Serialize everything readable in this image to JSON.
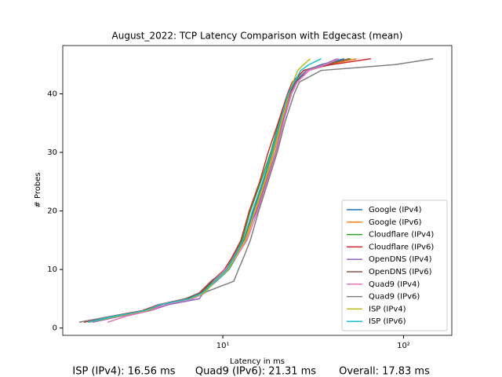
{
  "chart_data": {
    "type": "line",
    "title": "August_2022: TCP Latency Comparison with Edgecast (mean)",
    "xlabel": "Latency in ms",
    "ylabel": "# Probes",
    "xscale": "log",
    "xlim": [
      1.3,
      185
    ],
    "ylim": [
      -1.25,
      48.25
    ],
    "xticks": [
      {
        "value": 10,
        "label": "10¹"
      },
      {
        "value": 100,
        "label": "10²"
      }
    ],
    "yticks": [
      0,
      10,
      20,
      30,
      40
    ],
    "legend": "lower right",
    "annotations": [
      "ISP (IPv4): 16.56 ms",
      "Quad9 (IPv6): 21.31 ms",
      "Overall: 17.83 ms"
    ],
    "series": [
      {
        "name": "Google (IPv4)",
        "color": "#1f77b4",
        "x": [
          1.7,
          2.5,
          3.7,
          4.5,
          6.5,
          7.8,
          9.2,
          10.8,
          11.8,
          13.2,
          14.8,
          16.8,
          18.8,
          20.8,
          23.5,
          25,
          29,
          35,
          47
        ],
        "values": [
          1,
          2,
          3,
          4,
          5,
          6,
          8,
          10,
          12,
          15,
          20,
          25,
          30,
          35,
          40,
          42,
          44,
          45,
          46
        ]
      },
      {
        "name": "Google (IPv6)",
        "color": "#ff7f0e",
        "x": [
          1.8,
          2.6,
          3.9,
          4.6,
          6.6,
          7.9,
          9.0,
          10.6,
          11.6,
          13.4,
          15.2,
          17.2,
          19.2,
          21.2,
          23.6,
          25.5,
          30,
          38,
          55
        ],
        "values": [
          1,
          2,
          3,
          4,
          5,
          6,
          8,
          10,
          12,
          15,
          20,
          25,
          30,
          35,
          40,
          42,
          44,
          45,
          46
        ]
      },
      {
        "name": "Cloudflare (IPv4)",
        "color": "#2ca02c",
        "x": [
          1.8,
          2.5,
          3.8,
          4.5,
          6.4,
          7.6,
          8.8,
          10.4,
          11.4,
          12.8,
          14.2,
          16.2,
          18.4,
          20.4,
          23.2,
          24.6,
          28,
          36,
          51
        ],
        "values": [
          1,
          2,
          3,
          4,
          5,
          6,
          8,
          10,
          12,
          15,
          20,
          25,
          30,
          35,
          40,
          42,
          44,
          45,
          46
        ]
      },
      {
        "name": "Cloudflare (IPv6)",
        "color": "#d62728",
        "x": [
          1.7,
          2.4,
          3.6,
          4.4,
          6.2,
          7.5,
          8.7,
          10.2,
          11.2,
          12.6,
          14.0,
          16.0,
          17.8,
          20.2,
          22.8,
          24.2,
          28,
          40,
          66
        ],
        "values": [
          1,
          2,
          3,
          4,
          5,
          6,
          8,
          10,
          12,
          15,
          20,
          25,
          30,
          35,
          40,
          42,
          44,
          45,
          46
        ]
      },
      {
        "name": "OpenDNS (IPv4)",
        "color": "#9467bd",
        "x": [
          1.9,
          2.7,
          4.0,
          5.0,
          7.4,
          7.8,
          9.1,
          10.6,
          11.4,
          13.0,
          15.4,
          17.4,
          19.6,
          21.4,
          23.8,
          25.6,
          29,
          36,
          43
        ],
        "values": [
          1,
          2,
          3,
          4,
          5,
          6,
          8,
          10,
          12,
          15,
          20,
          25,
          30,
          35,
          40,
          42,
          44,
          45,
          46
        ]
      },
      {
        "name": "OpenDNS (IPv6)",
        "color": "#8c564b",
        "x": [
          1.8,
          2.6,
          3.8,
          4.6,
          6.2,
          7.4,
          8.6,
          10.4,
          11.6,
          13.2,
          14.6,
          16.6,
          18.6,
          20.6,
          23.4,
          25.2,
          30,
          38,
          50
        ],
        "values": [
          1,
          2,
          3,
          4,
          5,
          6,
          8,
          10,
          12,
          15,
          20,
          25,
          30,
          35,
          40,
          42,
          44,
          45,
          46
        ]
      },
      {
        "name": "Quad9 (IPv4)",
        "color": "#e377c2",
        "x": [
          2.3,
          2.9,
          4.0,
          4.7,
          6.8,
          8.0,
          8.9,
          10.3,
          11.8,
          13.6,
          15.6,
          17.6,
          19.8,
          21.6,
          24.0,
          25.8,
          30,
          37,
          44
        ],
        "values": [
          1,
          2,
          3,
          4,
          5,
          6,
          8,
          10,
          12,
          15,
          20,
          25,
          30,
          35,
          40,
          42,
          44,
          45,
          46
        ]
      },
      {
        "name": "Quad9 (IPv6)",
        "color": "#7f7f7f",
        "x": [
          1.6,
          2.4,
          3.9,
          4.4,
          6.6,
          7.8,
          11.5,
          12.2,
          13.0,
          14.2,
          15.8,
          17.8,
          20.0,
          22.0,
          24.8,
          26.5,
          35,
          90,
          146
        ],
        "values": [
          1,
          2,
          3,
          4,
          5,
          6,
          8,
          10,
          12,
          15,
          20,
          25,
          30,
          35,
          40,
          42,
          44,
          45,
          46
        ]
      },
      {
        "name": "ISP (IPv4)",
        "color": "#bcbd22",
        "x": [
          1.8,
          2.6,
          3.8,
          4.5,
          6.6,
          7.9,
          9.1,
          10.7,
          11.7,
          13.3,
          15.0,
          17.0,
          19.0,
          21.0,
          23.2,
          24.4,
          26,
          28,
          30.5
        ],
        "values": [
          1,
          2,
          3,
          4,
          5,
          6,
          8,
          10,
          12,
          15,
          20,
          25,
          30,
          35,
          40,
          42,
          44,
          45,
          46
        ]
      },
      {
        "name": "ISP (IPv6)",
        "color": "#17becf",
        "x": [
          1.8,
          2.5,
          3.7,
          4.5,
          6.5,
          7.7,
          9.0,
          10.5,
          11.5,
          13.0,
          14.6,
          16.6,
          18.6,
          20.6,
          23.0,
          24.8,
          27,
          30,
          35
        ],
        "values": [
          1,
          2,
          3,
          4,
          5,
          6,
          8,
          10,
          12,
          15,
          20,
          25,
          30,
          35,
          40,
          42,
          44,
          45,
          46
        ]
      }
    ]
  }
}
